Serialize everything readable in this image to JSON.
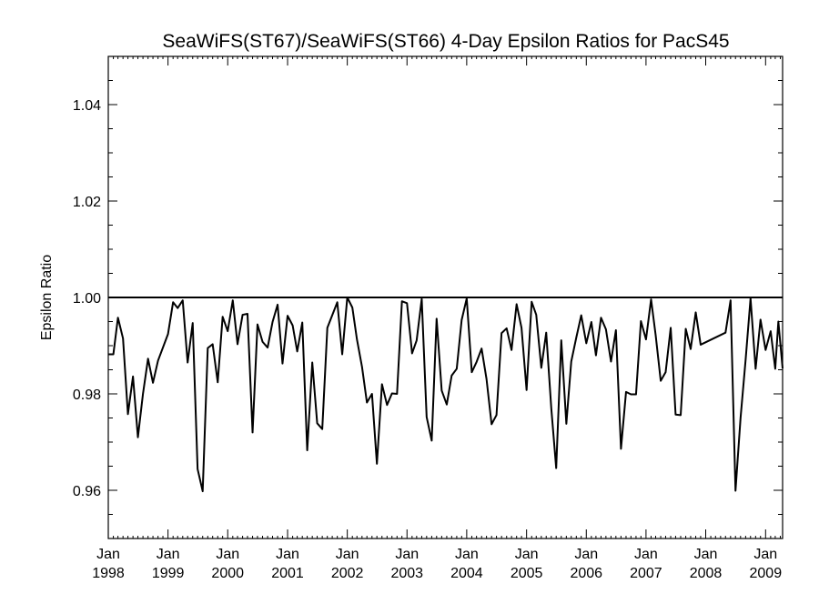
{
  "chart_data": {
    "type": "line",
    "title": "SeaWiFS(ST67)/SeaWiFS(ST66) 4-Day Epsilon Ratios for PacS45",
    "xlabel": "",
    "ylabel": "Epsilon Ratio",
    "xlim": [
      "1998-01-01",
      "2009-04-15"
    ],
    "ylim": [
      0.95,
      1.05
    ],
    "yticks": [
      {
        "value": 0.96,
        "label": "0.96"
      },
      {
        "value": 0.98,
        "label": "0.98"
      },
      {
        "value": 1.0,
        "label": "1.00"
      },
      {
        "value": 1.02,
        "label": "1.02"
      },
      {
        "value": 1.04,
        "label": "1.04"
      }
    ],
    "xticks": [
      {
        "date": "1998-01-01",
        "month": "Jan",
        "year": "1998"
      },
      {
        "date": "1999-01-01",
        "month": "Jan",
        "year": "1999"
      },
      {
        "date": "2000-01-01",
        "month": "Jan",
        "year": "2000"
      },
      {
        "date": "2001-01-01",
        "month": "Jan",
        "year": "2001"
      },
      {
        "date": "2002-01-01",
        "month": "Jan",
        "year": "2002"
      },
      {
        "date": "2003-01-01",
        "month": "Jan",
        "year": "2003"
      },
      {
        "date": "2004-01-01",
        "month": "Jan",
        "year": "2004"
      },
      {
        "date": "2005-01-01",
        "month": "Jan",
        "year": "2005"
      },
      {
        "date": "2006-01-01",
        "month": "Jan",
        "year": "2006"
      },
      {
        "date": "2007-01-01",
        "month": "Jan",
        "year": "2007"
      },
      {
        "date": "2008-01-01",
        "month": "Jan",
        "year": "2008"
      },
      {
        "date": "2009-01-01",
        "month": "Jan",
        "year": "2009"
      }
    ],
    "reference_line": 1.0,
    "grid": false,
    "series": [
      {
        "points": [
          [
            "1998-01-01",
            0.9882
          ],
          [
            "1998-02-01",
            0.9882
          ],
          [
            "1998-03-01",
            0.9958
          ],
          [
            "1998-04-01",
            0.9915
          ],
          [
            "1998-05-01",
            0.9758
          ],
          [
            "1998-06-01",
            0.9836
          ],
          [
            "1998-07-01",
            0.971
          ],
          [
            "1998-08-01",
            0.98
          ],
          [
            "1998-09-01",
            0.9873
          ],
          [
            "1998-10-01",
            0.9823
          ],
          [
            "1998-11-01",
            0.9869
          ],
          [
            "1999-01-01",
            0.9924
          ],
          [
            "1999-02-01",
            0.999
          ],
          [
            "1999-03-01",
            0.9978
          ],
          [
            "1999-04-01",
            0.9994
          ],
          [
            "1999-05-01",
            0.9865
          ],
          [
            "1999-06-01",
            0.9947
          ],
          [
            "1999-07-01",
            0.9644
          ],
          [
            "1999-08-01",
            0.9598
          ],
          [
            "1999-09-01",
            0.9895
          ],
          [
            "1999-10-01",
            0.9903
          ],
          [
            "1999-11-01",
            0.9824
          ],
          [
            "1999-12-01",
            0.996
          ],
          [
            "2000-01-01",
            0.993
          ],
          [
            "2000-02-01",
            0.9994
          ],
          [
            "2000-03-01",
            0.9903
          ],
          [
            "2000-04-01",
            0.9964
          ],
          [
            "2000-05-01",
            0.9966
          ],
          [
            "2000-06-01",
            0.972
          ],
          [
            "2000-07-01",
            0.9944
          ],
          [
            "2000-08-01",
            0.9908
          ],
          [
            "2000-09-01",
            0.9896
          ],
          [
            "2000-10-01",
            0.9949
          ],
          [
            "2000-11-01",
            0.9985
          ],
          [
            "2000-12-01",
            0.9863
          ],
          [
            "2001-01-01",
            0.9962
          ],
          [
            "2001-02-01",
            0.9942
          ],
          [
            "2001-03-01",
            0.9888
          ],
          [
            "2001-04-01",
            0.9948
          ],
          [
            "2001-05-01",
            0.9683
          ],
          [
            "2001-06-01",
            0.9865
          ],
          [
            "2001-07-01",
            0.9739
          ],
          [
            "2001-08-01",
            0.9727
          ],
          [
            "2001-09-01",
            0.9937
          ],
          [
            "2001-11-01",
            0.999
          ],
          [
            "2001-12-01",
            0.9882
          ],
          [
            "2002-01-01",
            1.0
          ],
          [
            "2002-02-01",
            0.9979
          ],
          [
            "2002-03-01",
            0.9913
          ],
          [
            "2002-04-01",
            0.9856
          ],
          [
            "2002-05-01",
            0.9782
          ],
          [
            "2002-06-01",
            0.98
          ],
          [
            "2002-07-01",
            0.9655
          ],
          [
            "2002-08-01",
            0.982
          ],
          [
            "2002-09-01",
            0.9777
          ],
          [
            "2002-10-01",
            0.9801
          ],
          [
            "2002-11-01",
            0.98
          ],
          [
            "2002-12-01",
            0.9992
          ],
          [
            "2003-01-01",
            0.9988
          ],
          [
            "2003-02-01",
            0.9884
          ],
          [
            "2003-03-01",
            0.9911
          ],
          [
            "2003-04-01",
            0.9997
          ],
          [
            "2003-05-01",
            0.9752
          ],
          [
            "2003-06-01",
            0.9703
          ],
          [
            "2003-07-01",
            0.9956
          ],
          [
            "2003-08-01",
            0.9807
          ],
          [
            "2003-09-01",
            0.9778
          ],
          [
            "2003-10-01",
            0.9838
          ],
          [
            "2003-11-01",
            0.9852
          ],
          [
            "2003-12-01",
            0.9953
          ],
          [
            "2004-01-01",
            0.9998
          ],
          [
            "2004-02-01",
            0.9845
          ],
          [
            "2004-03-01",
            0.9866
          ],
          [
            "2004-04-01",
            0.9894
          ],
          [
            "2004-05-01",
            0.9831
          ],
          [
            "2004-06-01",
            0.9737
          ],
          [
            "2004-07-01",
            0.9756
          ],
          [
            "2004-08-01",
            0.9926
          ],
          [
            "2004-09-01",
            0.9936
          ],
          [
            "2004-10-01",
            0.9891
          ],
          [
            "2004-11-01",
            0.9986
          ],
          [
            "2004-12-01",
            0.9937
          ],
          [
            "2005-01-01",
            0.9808
          ],
          [
            "2005-02-01",
            0.9991
          ],
          [
            "2005-03-01",
            0.9964
          ],
          [
            "2005-04-01",
            0.9854
          ],
          [
            "2005-05-01",
            0.9927
          ],
          [
            "2005-06-01",
            0.977
          ],
          [
            "2005-07-01",
            0.9646
          ],
          [
            "2005-08-01",
            0.9911
          ],
          [
            "2005-09-01",
            0.9738
          ],
          [
            "2005-10-01",
            0.9867
          ],
          [
            "2005-11-01",
            0.9917
          ],
          [
            "2005-12-01",
            0.9963
          ],
          [
            "2006-01-01",
            0.9905
          ],
          [
            "2006-02-01",
            0.9949
          ],
          [
            "2006-03-01",
            0.988
          ],
          [
            "2006-04-01",
            0.9958
          ],
          [
            "2006-05-01",
            0.9934
          ],
          [
            "2006-06-01",
            0.9867
          ],
          [
            "2006-07-01",
            0.9932
          ],
          [
            "2006-08-01",
            0.9686
          ],
          [
            "2006-09-01",
            0.9804
          ],
          [
            "2006-10-01",
            0.9799
          ],
          [
            "2006-11-01",
            0.9799
          ],
          [
            "2006-12-01",
            0.9951
          ],
          [
            "2007-01-01",
            0.9913
          ],
          [
            "2007-02-01",
            0.9996
          ],
          [
            "2007-03-01",
            0.9922
          ],
          [
            "2007-04-01",
            0.9827
          ],
          [
            "2007-05-01",
            0.9845
          ],
          [
            "2007-06-01",
            0.9937
          ],
          [
            "2007-07-01",
            0.9757
          ],
          [
            "2007-08-01",
            0.9756
          ],
          [
            "2007-09-01",
            0.9935
          ],
          [
            "2007-10-01",
            0.9893
          ],
          [
            "2007-11-01",
            0.9969
          ],
          [
            "2007-12-01",
            0.9902
          ],
          [
            "2008-05-01",
            0.9927
          ],
          [
            "2008-06-01",
            0.9994
          ],
          [
            "2008-07-01",
            0.9599
          ],
          [
            "2008-08-01",
            0.975
          ],
          [
            "2008-09-01",
            0.9871
          ],
          [
            "2008-10-01",
            0.9998
          ],
          [
            "2008-11-01",
            0.9852
          ],
          [
            "2008-12-01",
            0.9954
          ],
          [
            "2009-01-01",
            0.9891
          ],
          [
            "2009-02-01",
            0.993
          ],
          [
            "2009-03-01",
            0.9852
          ],
          [
            "2009-03-20",
            0.995
          ],
          [
            "2009-04-15",
            0.9853
          ]
        ]
      }
    ]
  }
}
